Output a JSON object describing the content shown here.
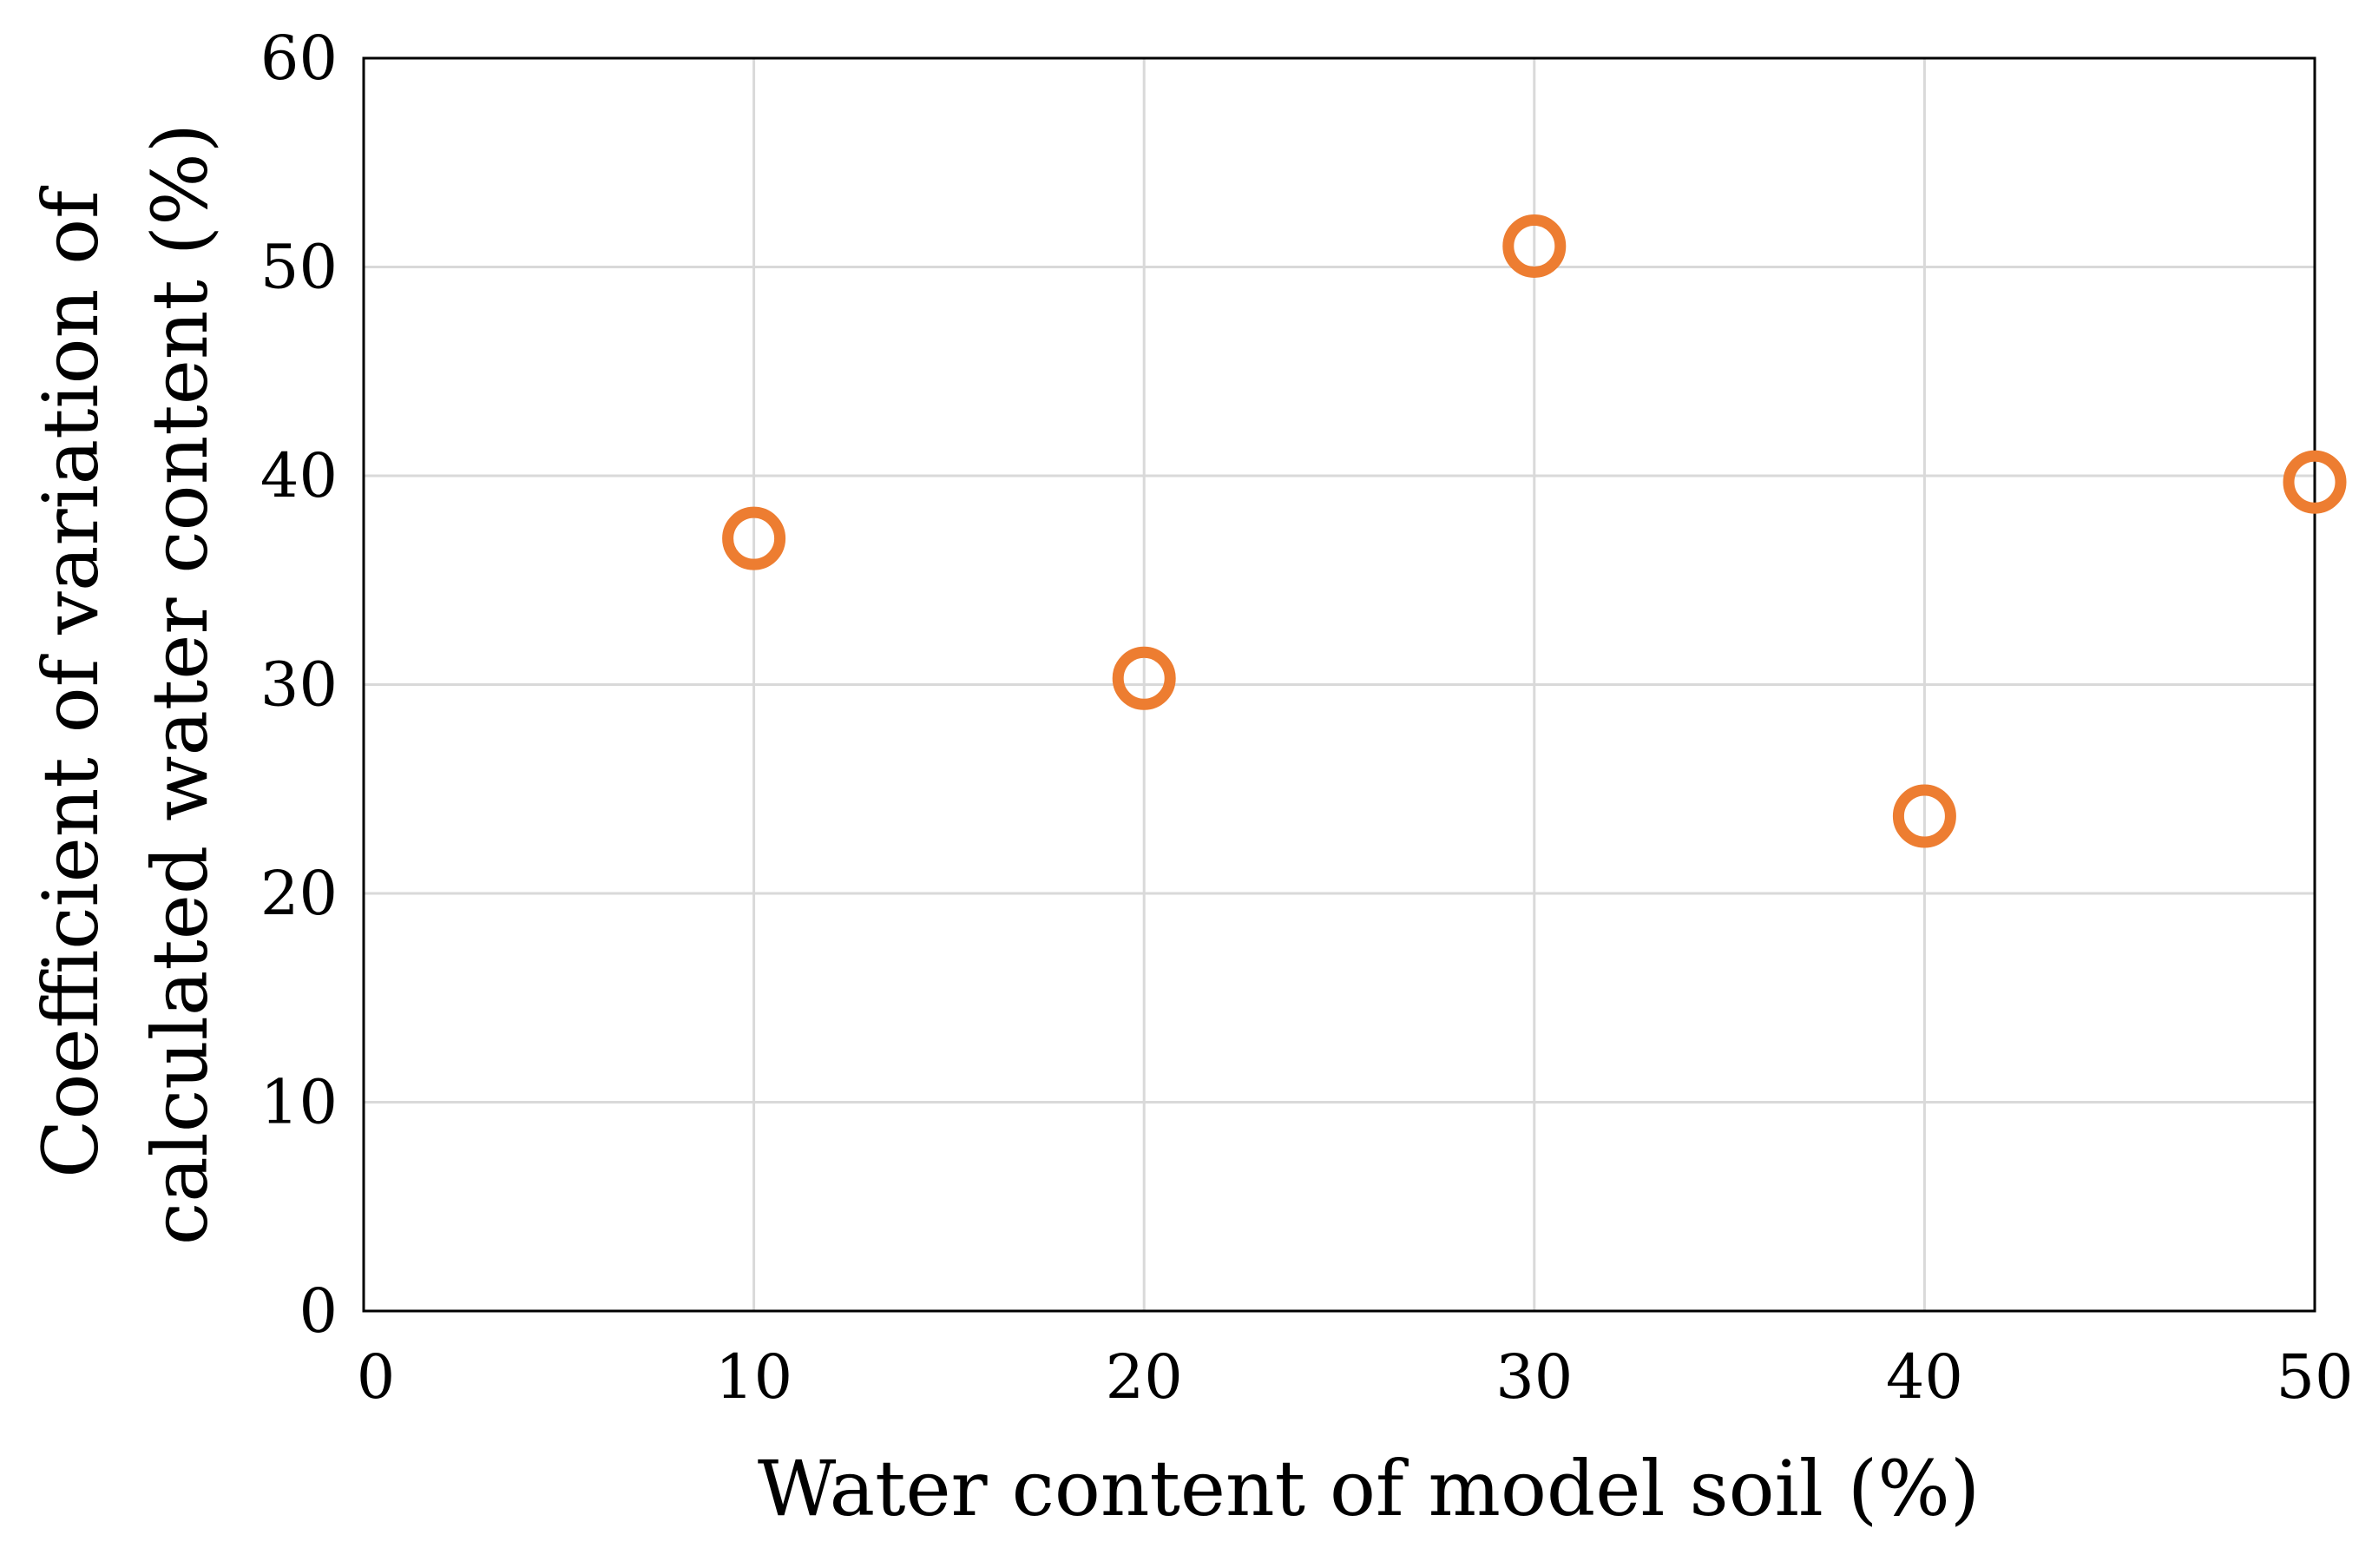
{
  "chart_data": {
    "type": "scatter",
    "title": "",
    "xlabel": "Water content of model soil (%)",
    "ylabel_lines": [
      "Coefficient of variation of",
      "calculated water content (%)"
    ],
    "xlim": [
      0,
      50
    ],
    "ylim": [
      0,
      60
    ],
    "xticks": [
      "0",
      "10",
      "20",
      "30",
      "40",
      "50"
    ],
    "yticks": [
      "0",
      "10",
      "20",
      "30",
      "40",
      "50",
      "60"
    ],
    "grid": true,
    "marker": "hollow-circle",
    "color": "#ED7D31",
    "series": [
      {
        "x": [
          10,
          20,
          30,
          40,
          50
        ],
        "y": [
          37.0,
          30.3,
          51.0,
          23.7,
          39.7
        ]
      }
    ]
  }
}
